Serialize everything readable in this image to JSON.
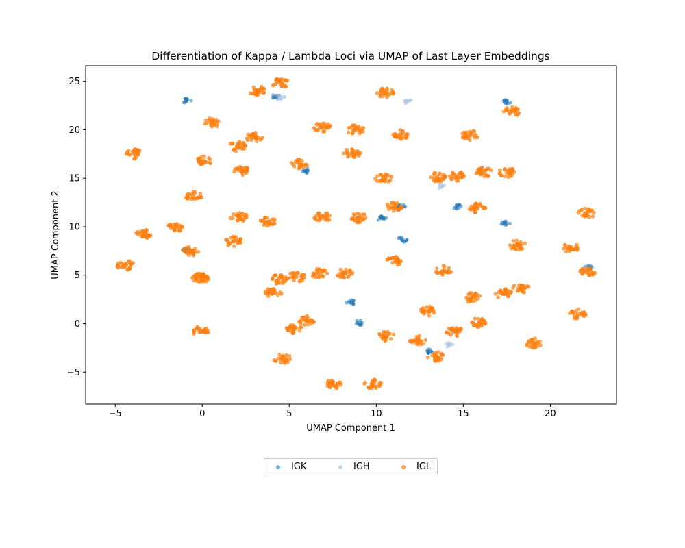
{
  "chart_data": {
    "type": "scatter",
    "title": "Differentiation of Kappa / Lambda Loci via UMAP of Last Layer Embeddings",
    "xlabel": "UMAP Component 1",
    "ylabel": "UMAP Component 2",
    "xlim": [
      -6.7,
      23.8
    ],
    "ylim": [
      -8.3,
      26.6
    ],
    "xticks": [
      -5,
      0,
      5,
      10,
      15,
      20
    ],
    "xtick_labels": [
      "−5",
      "0",
      "5",
      "10",
      "15",
      "20"
    ],
    "yticks": [
      -5,
      0,
      5,
      10,
      15,
      20,
      25
    ],
    "ytick_labels": [
      "−5",
      "0",
      "5",
      "10",
      "15",
      "20",
      "25"
    ],
    "grid": false,
    "legend_position": "below",
    "series": [
      {
        "name": "IGK",
        "color": "#1f77b4",
        "points": [
          [
            -0.9,
            23
          ],
          [
            4.2,
            23.4
          ],
          [
            13.1,
            -2.9
          ],
          [
            -0.9,
            7.6
          ],
          [
            8.5,
            2.2
          ],
          [
            10.3,
            10.9
          ],
          [
            11.5,
            8.7
          ],
          [
            14.6,
            12.1
          ],
          [
            17.4,
            10.3
          ],
          [
            17.5,
            22.9
          ],
          [
            22.2,
            5.7
          ],
          [
            9,
            0.1
          ],
          [
            6,
            15.8
          ],
          [
            11.4,
            12
          ]
        ]
      },
      {
        "name": "IGH",
        "color": "#aec7e8",
        "points": [
          [
            4.5,
            23.3
          ],
          [
            11.8,
            22.9
          ],
          [
            13.7,
            14.2
          ],
          [
            14.2,
            -2.2
          ]
        ]
      },
      {
        "name": "IGL",
        "color": "#ff7f0e",
        "points": [
          [
            0.5,
            20.7
          ],
          [
            3,
            19.2
          ],
          [
            -3.9,
            17.5
          ],
          [
            0.1,
            16.8
          ],
          [
            2.3,
            15.7
          ],
          [
            -0.5,
            13.1
          ],
          [
            2.1,
            11
          ],
          [
            3.8,
            10.5
          ],
          [
            1.8,
            8.5
          ],
          [
            -0.7,
            7.5
          ],
          [
            -0.1,
            4.7
          ],
          [
            -0.1,
            -0.8
          ],
          [
            3.2,
            24
          ],
          [
            4.5,
            24.8
          ],
          [
            6.9,
            20.3
          ],
          [
            8.8,
            20
          ],
          [
            11.4,
            19.5
          ],
          [
            15.4,
            19.4
          ],
          [
            17.8,
            21.9
          ],
          [
            10.5,
            23.8
          ],
          [
            8.6,
            17.6
          ],
          [
            2,
            18.3
          ],
          [
            5.6,
            16.5
          ],
          [
            10.4,
            15
          ],
          [
            13.5,
            15.1
          ],
          [
            14.7,
            15.2
          ],
          [
            16.2,
            15.6
          ],
          [
            17.5,
            15.6
          ],
          [
            11,
            12
          ],
          [
            6.9,
            11
          ],
          [
            9,
            10.9
          ],
          [
            15.8,
            11.9
          ],
          [
            18.1,
            8.1
          ],
          [
            22.1,
            11.4
          ],
          [
            21.2,
            7.8
          ],
          [
            11.1,
            6.5
          ],
          [
            -4.4,
            6
          ],
          [
            -3.4,
            9.2
          ],
          [
            -1.5,
            10
          ],
          [
            -0.1,
            4.8
          ],
          [
            4.4,
            4.6
          ],
          [
            5.4,
            4.8
          ],
          [
            6.7,
            5.2
          ],
          [
            8.2,
            5.2
          ],
          [
            4.1,
            3.2
          ],
          [
            13.9,
            5.5
          ],
          [
            22.1,
            5.3
          ],
          [
            15.5,
            2.7
          ],
          [
            17.3,
            3.1
          ],
          [
            18.3,
            3.6
          ],
          [
            5.3,
            -0.5
          ],
          [
            4.6,
            -3.6
          ],
          [
            6,
            0.3
          ],
          [
            9.8,
            -6.2
          ],
          [
            7.5,
            -6.3
          ],
          [
            10.6,
            -1.3
          ],
          [
            12.4,
            -1.7
          ],
          [
            14.5,
            -0.8
          ],
          [
            15.9,
            0.1
          ],
          [
            19,
            -2
          ],
          [
            13.4,
            -3.4
          ],
          [
            21.6,
            1
          ],
          [
            13,
            1.3
          ]
        ]
      }
    ]
  },
  "legend": {
    "items": [
      {
        "label": "IGK",
        "color": "#1f77b4"
      },
      {
        "label": "IGH",
        "color": "#aec7e8"
      },
      {
        "label": "IGL",
        "color": "#ff7f0e"
      }
    ]
  }
}
